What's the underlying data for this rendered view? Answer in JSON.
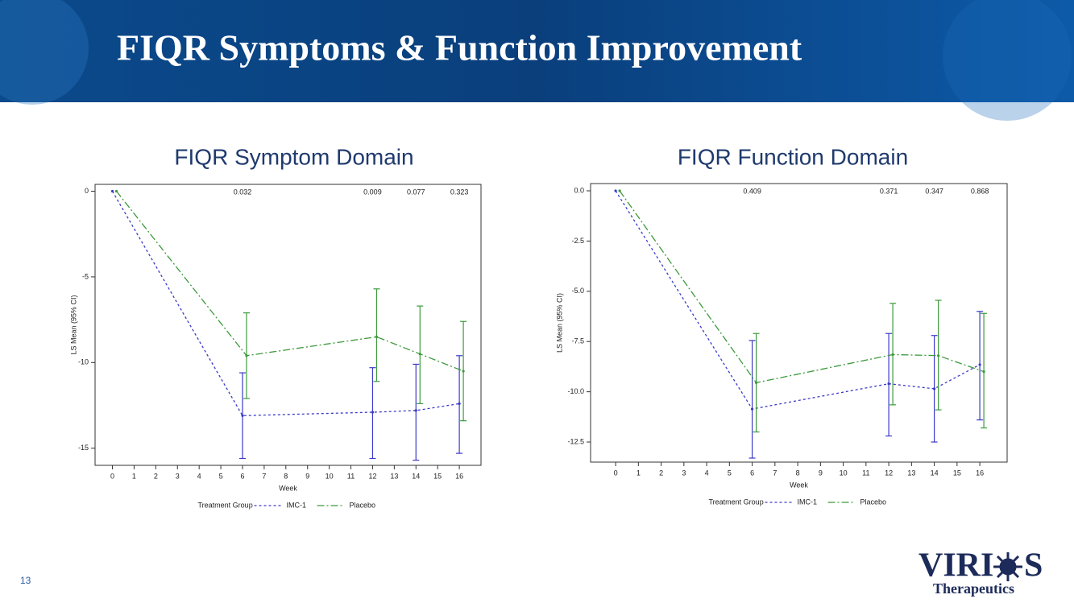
{
  "header": {
    "title": "FIQR Symptoms & Function Improvement"
  },
  "footer": {
    "page": "13",
    "logo": [
      "VIRI",
      "S"
    ],
    "logo_sub": "Therapeutics"
  },
  "chart_data": [
    {
      "type": "line",
      "title": "FIQR Symptom Domain",
      "xlabel": "Week",
      "ylabel": "LS Mean (95% CI)",
      "legend_title": "Treatment Group",
      "legend": "bottom",
      "x": [
        0,
        6,
        12,
        14,
        16
      ],
      "xlim": [
        -0.8,
        17.0
      ],
      "xticks": [
        0,
        1,
        2,
        3,
        4,
        5,
        6,
        7,
        8,
        9,
        10,
        11,
        12,
        13,
        14,
        15,
        16
      ],
      "ylim": [
        -16,
        0.4
      ],
      "yticks": [
        0,
        -5,
        -10,
        -15
      ],
      "annotations": [
        {
          "x": 6,
          "text": "0.032"
        },
        {
          "x": 12,
          "text": "0.009"
        },
        {
          "x": 14,
          "text": "0.077"
        },
        {
          "x": 16,
          "text": "0.323"
        }
      ],
      "series": [
        {
          "name": "IMC-1",
          "color": "#3a3ac8",
          "dash": "3,3",
          "values": [
            0,
            -13.1,
            -12.9,
            -12.8,
            -12.4
          ],
          "lower": [
            null,
            -15.6,
            -15.6,
            -15.7,
            -15.3
          ],
          "upper": [
            null,
            -10.6,
            -10.3,
            -10.1,
            -9.6
          ]
        },
        {
          "name": "Placebo",
          "color": "#3c9a3c",
          "dash": "9,3,2,3",
          "values": [
            0,
            -9.6,
            -8.5,
            -9.5,
            -10.5
          ],
          "lower": [
            null,
            -12.1,
            -11.1,
            -12.4,
            -13.4
          ],
          "upper": [
            null,
            -7.1,
            -5.7,
            -6.7,
            -7.6
          ]
        }
      ]
    },
    {
      "type": "line",
      "title": "FIQR Function Domain",
      "xlabel": "Week",
      "ylabel": "LS Mean (95% CI)",
      "legend_title": "Treatment Group",
      "legend": "bottom",
      "x": [
        0,
        6,
        12,
        14,
        16
      ],
      "xlim": [
        -1.1,
        17.2
      ],
      "xticks": [
        0,
        1,
        2,
        3,
        4,
        5,
        6,
        7,
        8,
        9,
        10,
        11,
        12,
        13,
        14,
        15,
        16
      ],
      "ylim": [
        -13.5,
        0.36
      ],
      "yticks": [
        {
          "value": 0,
          "label": "0.0"
        },
        -2.5,
        {
          "value": -5,
          "label": "-5.0"
        },
        -7.5,
        {
          "value": -10,
          "label": "-10.0"
        },
        -12.5
      ],
      "annotations": [
        {
          "x": 6,
          "text": "0.409"
        },
        {
          "x": 12,
          "text": "0.371"
        },
        {
          "x": 14,
          "text": "0.347"
        },
        {
          "x": 16,
          "text": "0.868"
        }
      ],
      "series": [
        {
          "name": "IMC-1",
          "color": "#3a3ac8",
          "dash": "3,3",
          "values": [
            0,
            -10.86,
            -9.6,
            -9.85,
            -8.65
          ],
          "lower": [
            null,
            -13.3,
            -12.2,
            -12.5,
            -11.4
          ],
          "upper": [
            null,
            -7.45,
            -7.1,
            -7.2,
            -6.0
          ]
        },
        {
          "name": "Placebo",
          "color": "#3c9a3c",
          "dash": "9,3,2,3",
          "values": [
            0,
            -9.55,
            -8.15,
            -8.2,
            -9.0
          ],
          "lower": [
            null,
            -12.0,
            -10.65,
            -10.9,
            -11.8
          ],
          "upper": [
            null,
            -7.1,
            -5.6,
            -5.45,
            -6.1
          ]
        }
      ]
    }
  ]
}
